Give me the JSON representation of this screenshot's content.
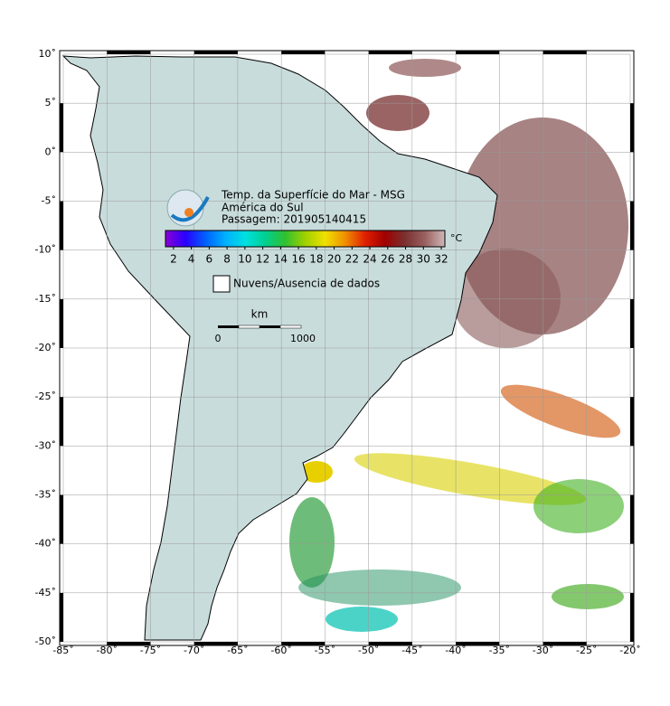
{
  "map": {
    "title": "Temp. da Superfície do Mar - MSG",
    "subtitle": "América do Sul",
    "pass": "Passagem: 201905140415",
    "colorbar": {
      "unit": "°C",
      "lim": [
        1.1,
        32.4
      ],
      "ticks": [
        2,
        4,
        6,
        8,
        10,
        12,
        14,
        16,
        18,
        20,
        22,
        24,
        26,
        28,
        30,
        32
      ],
      "colors": [
        "#8a00d4",
        "#2a00ff",
        "#0060ff",
        "#00b0ff",
        "#00e0e0",
        "#00d090",
        "#30c030",
        "#a0d000",
        "#f0e000",
        "#f09000",
        "#e02000",
        "#a00000",
        "#7a3030",
        "#9a6060",
        "#d0b8b8"
      ]
    },
    "legend": "Nuvens/Ausencia de dados",
    "scale": {
      "unit": "km",
      "start": "0",
      "end": "1000"
    },
    "xlim": [
      -85,
      -20
    ],
    "ylim": [
      -50,
      10
    ],
    "xticks": [
      {
        "value": -85,
        "label": "-85˚"
      },
      {
        "value": -80,
        "label": "-80˚"
      },
      {
        "value": -75,
        "label": "-75˚"
      },
      {
        "value": -70,
        "label": "-70˚"
      },
      {
        "value": -65,
        "label": "-65˚"
      },
      {
        "value": -60,
        "label": "-60˚"
      },
      {
        "value": -55,
        "label": "-55˚"
      },
      {
        "value": -50,
        "label": "-50˚"
      },
      {
        "value": -45,
        "label": "-45˚"
      },
      {
        "value": -40,
        "label": "-40˚"
      },
      {
        "value": -35,
        "label": "-35˚"
      },
      {
        "value": -30,
        "label": "-30˚"
      },
      {
        "value": -25,
        "label": "-25˚"
      },
      {
        "value": -20,
        "label": "-20˚"
      }
    ],
    "yticks": [
      {
        "value": 10,
        "label": "10˚"
      },
      {
        "value": 5,
        "label": "5˚"
      },
      {
        "value": 0,
        "label": "0˚"
      },
      {
        "value": -5,
        "label": "-5˚"
      },
      {
        "value": -10,
        "label": "-10˚"
      },
      {
        "value": -15,
        "label": "-15˚"
      },
      {
        "value": -20,
        "label": "-20˚"
      },
      {
        "value": -25,
        "label": "-25˚"
      },
      {
        "value": -30,
        "label": "-30˚"
      },
      {
        "value": -35,
        "label": "-35˚"
      },
      {
        "value": -40,
        "label": "-40˚"
      },
      {
        "value": -45,
        "label": "-45˚"
      },
      {
        "value": -50,
        "label": "-50˚"
      }
    ]
  }
}
